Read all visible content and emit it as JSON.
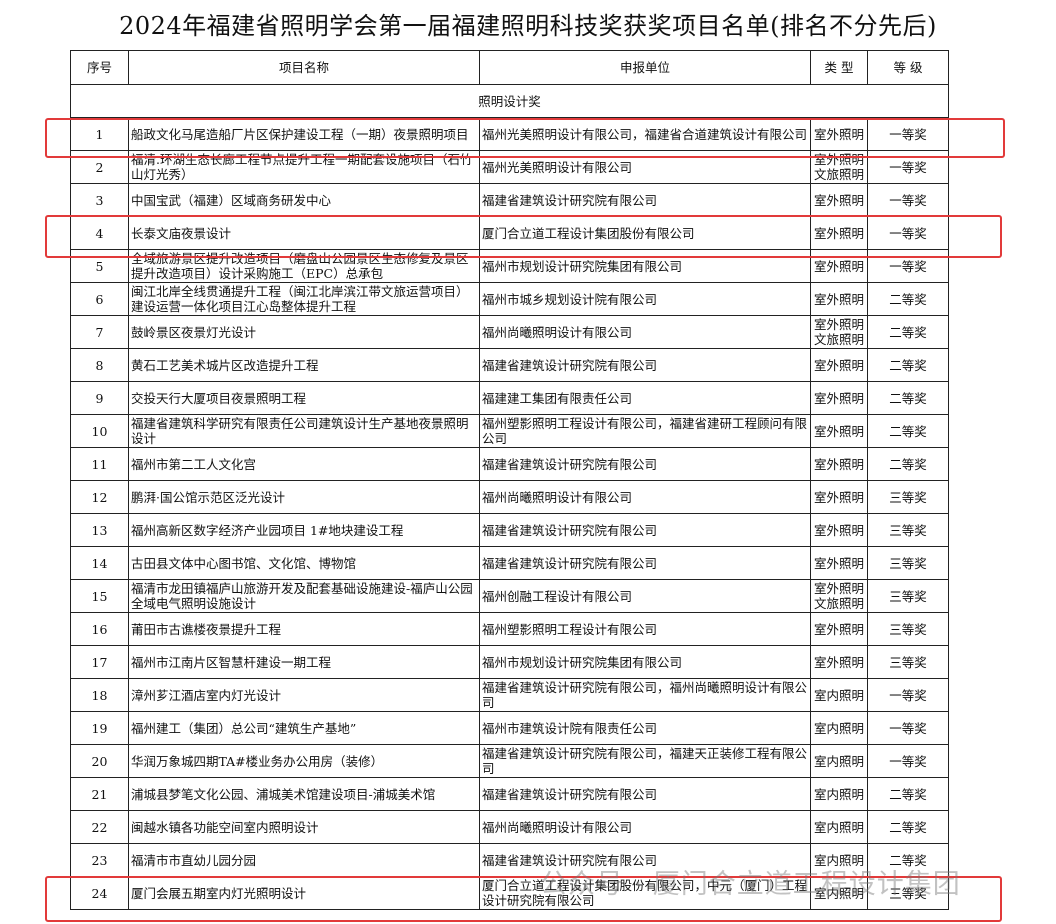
{
  "title": "2024年福建省照明学会第一届福建照明科技奖获奖项目名单(排名不分先后)",
  "headers": [
    "序号",
    "项目名称",
    "申报单位",
    "类 型",
    "等  级"
  ],
  "section": "照明设计奖",
  "highlight_color": "#e23a3a",
  "highlighted_rows": [
    1,
    4,
    24
  ],
  "watermark": "公众号 · 厦门合立道工程设计集团",
  "rows": [
    {
      "no": "1",
      "name": "船政文化马尾造船厂片区保护建设工程（一期）夜景照明项目",
      "unit": "福州光美照明设计有限公司，福建省合道建筑设计有限公司",
      "type": "室外照明",
      "grade": "一等奖"
    },
    {
      "no": "2",
      "name": "福清.环湖生态长廊工程节点提升工程一期配套设施项目（石竹山灯光秀）",
      "unit": "福州光美照明设计有限公司",
      "type": "室外照明 文旅照明",
      "grade": "一等奖"
    },
    {
      "no": "3",
      "name": "中国宝武（福建）区域商务研发中心",
      "unit": "福建省建筑设计研究院有限公司",
      "type": "室外照明",
      "grade": "一等奖"
    },
    {
      "no": "4",
      "name": "长泰文庙夜景设计",
      "unit": "厦门合立道工程设计集团股份有限公司",
      "type": "室外照明",
      "grade": "一等奖"
    },
    {
      "no": "5",
      "name": "全域旅游景区提升改造项目（磨盘山公园景区生态修复及景区提升改造项目）设计采购施工（EPC）总承包",
      "unit": "福州市规划设计研究院集团有限公司",
      "type": "室外照明",
      "grade": "一等奖"
    },
    {
      "no": "6",
      "name": "闽江北岸全线贯通提升工程（闽江北岸滨江带文旅运营项目）建设运营一体化项目江心岛整体提升工程",
      "unit": "福州市城乡规划设计院有限公司",
      "type": "室外照明",
      "grade": "二等奖"
    },
    {
      "no": "7",
      "name": "鼓岭景区夜景灯光设计",
      "unit": "福州尚曦照明设计有限公司",
      "type": "室外照明 文旅照明",
      "grade": "二等奖"
    },
    {
      "no": "8",
      "name": "黄石工艺美术城片区改造提升工程",
      "unit": "福建省建筑设计研究院有限公司",
      "type": "室外照明",
      "grade": "二等奖"
    },
    {
      "no": "9",
      "name": "交投天行大厦项目夜景照明工程",
      "unit": "福建建工集团有限责任公司",
      "type": "室外照明",
      "grade": "二等奖"
    },
    {
      "no": "10",
      "name": "福建省建筑科学研究有限责任公司建筑设计生产基地夜景照明设计",
      "unit": "福州塑影照明工程设计有限公司，福建省建研工程顾问有限公司",
      "type": "室外照明",
      "grade": "二等奖"
    },
    {
      "no": "11",
      "name": "福州市第二工人文化宫",
      "unit": "福建省建筑设计研究院有限公司",
      "type": "室外照明",
      "grade": "二等奖"
    },
    {
      "no": "12",
      "name": "鹏湃·国公馆示范区泛光设计",
      "unit": "福州尚曦照明设计有限公司",
      "type": "室外照明",
      "grade": "三等奖"
    },
    {
      "no": "13",
      "name": "福州高新区数字经济产业园项目 1#地块建设工程",
      "unit": "福建省建筑设计研究院有限公司",
      "type": "室外照明",
      "grade": "三等奖"
    },
    {
      "no": "14",
      "name": "古田县文体中心图书馆、文化馆、博物馆",
      "unit": "福建省建筑设计研究院有限公司",
      "type": "室外照明",
      "grade": "三等奖"
    },
    {
      "no": "15",
      "name": "福清市龙田镇福庐山旅游开发及配套基础设施建设-福庐山公园全域电气照明设施设计",
      "unit": "福州创融工程设计有限公司",
      "type": "室外照明 文旅照明",
      "grade": "三等奖"
    },
    {
      "no": "16",
      "name": "莆田市古谯楼夜景提升工程",
      "unit": "福州塑影照明工程设计有限公司",
      "type": "室外照明",
      "grade": "三等奖"
    },
    {
      "no": "17",
      "name": "福州市江南片区智慧杆建设一期工程",
      "unit": "福州市规划设计研究院集团有限公司",
      "type": "室外照明",
      "grade": "三等奖"
    },
    {
      "no": "18",
      "name": "漳州芗江酒店室内灯光设计",
      "unit": "福建省建筑设计研究院有限公司，福州尚曦照明设计有限公司",
      "type": "室内照明",
      "grade": "一等奖"
    },
    {
      "no": "19",
      "name": "福州建工（集团）总公司“建筑生产基地”",
      "unit": "福州市建筑设计院有限责任公司",
      "type": "室内照明",
      "grade": "一等奖"
    },
    {
      "no": "20",
      "name": "华润万象城四期TA#楼业务办公用房（装修）",
      "unit": "福建省建筑设计研究院有限公司，福建天正装修工程有限公司",
      "type": "室内照明",
      "grade": "一等奖"
    },
    {
      "no": "21",
      "name": "浦城县梦笔文化公园、浦城美术馆建设项目-浦城美术馆",
      "unit": "福建省建筑设计研究院有限公司",
      "type": "室内照明",
      "grade": "二等奖"
    },
    {
      "no": "22",
      "name": "闽越水镇各功能空间室内照明设计",
      "unit": "福州尚曦照明设计有限公司",
      "type": "室内照明",
      "grade": "二等奖"
    },
    {
      "no": "23",
      "name": "福清市市直幼儿园分园",
      "unit": "福建省建筑设计研究院有限公司",
      "type": "室内照明",
      "grade": "二等奖"
    },
    {
      "no": "24",
      "name": "厦门会展五期室内灯光照明设计",
      "unit": "厦门合立道工程设计集团股份有限公司，中元（厦门）工程设计研究院有限公司",
      "type": "室内照明",
      "grade": "三等奖"
    }
  ]
}
